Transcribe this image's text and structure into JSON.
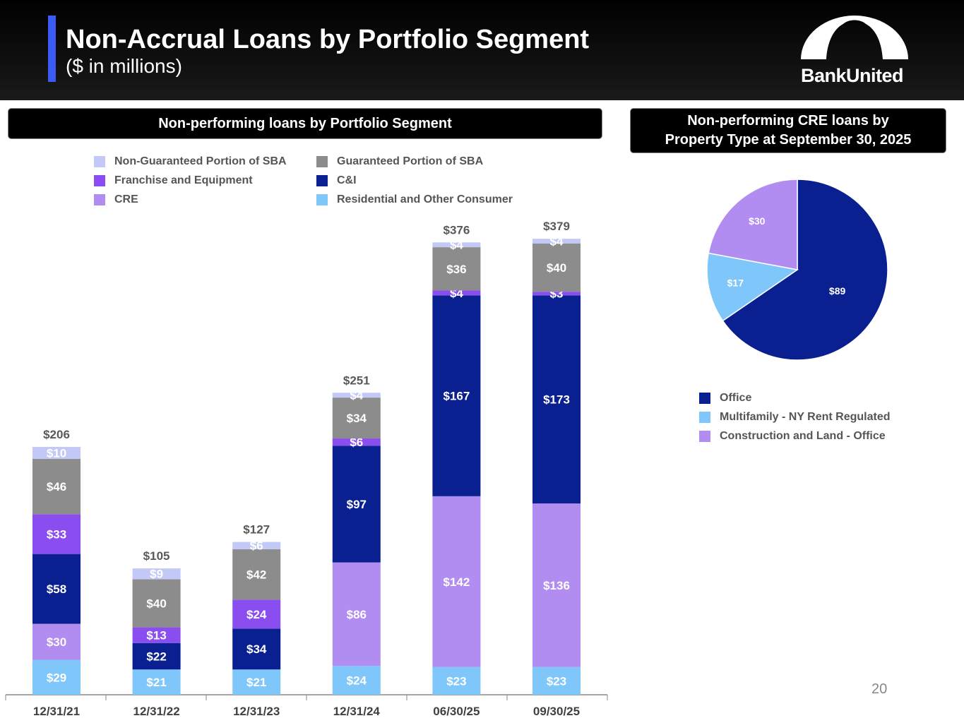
{
  "header": {
    "title": "Non-Accrual Loans by Portfolio Segment",
    "subtitle": "($ in millions)",
    "logo_text": "BankUnited"
  },
  "left_panel_title": "Non-performing loans by Portfolio Segment",
  "right_panel_title_line1": "Non-performing CRE loans by",
  "right_panel_title_line2": "Property Type at September 30, 2025",
  "page_number": "20",
  "chart_data": [
    {
      "type": "bar",
      "stacked": true,
      "title": "Non-performing loans by Portfolio Segment",
      "units": "$ in millions",
      "categories": [
        "12/31/21",
        "12/31/22",
        "12/31/23",
        "12/31/24",
        "06/30/25",
        "09/30/25"
      ],
      "totals": [
        "$206",
        "$105",
        "$127",
        "$251",
        "$376",
        "$379"
      ],
      "series": [
        {
          "name": "Residential and Other Consumer",
          "color": "#7fc7fb",
          "values": [
            29,
            21,
            21,
            24,
            23,
            23
          ]
        },
        {
          "name": "CRE",
          "color": "#b18cf1",
          "values": [
            30,
            0,
            0,
            86,
            142,
            136
          ]
        },
        {
          "name": "C&I",
          "color": "#0a1f90",
          "values": [
            58,
            22,
            34,
            97,
            167,
            173
          ]
        },
        {
          "name": "Franchise and Equipment",
          "color": "#8a4df0",
          "values": [
            33,
            13,
            24,
            6,
            4,
            3
          ]
        },
        {
          "name": "Guaranteed Portion of SBA",
          "color": "#8c8c8c",
          "values": [
            46,
            40,
            42,
            34,
            36,
            40
          ]
        },
        {
          "name": "Non-Guaranteed Portion of SBA",
          "color": "#c3c9f7",
          "values": [
            10,
            9,
            6,
            4,
            4,
            4
          ]
        }
      ],
      "legend_order": [
        "Non-Guaranteed Portion of SBA",
        "Guaranteed Portion of SBA",
        "Franchise and Equipment",
        "C&I",
        "CRE",
        "Residential and Other Consumer"
      ],
      "legend": "top"
    },
    {
      "type": "pie",
      "title": "Non-performing CRE loans by Property Type at September 30, 2025",
      "slices": [
        {
          "name": "Office",
          "value": 89,
          "label": "$89",
          "color": "#0a1f90"
        },
        {
          "name": "Multifamily - NY Rent Regulated",
          "value": 17,
          "label": "$17",
          "color": "#7fc7fb"
        },
        {
          "name": "Construction and Land - Office",
          "value": 30,
          "label": "$30",
          "color": "#b18cf1"
        }
      ],
      "legend": "bottom-left"
    }
  ]
}
